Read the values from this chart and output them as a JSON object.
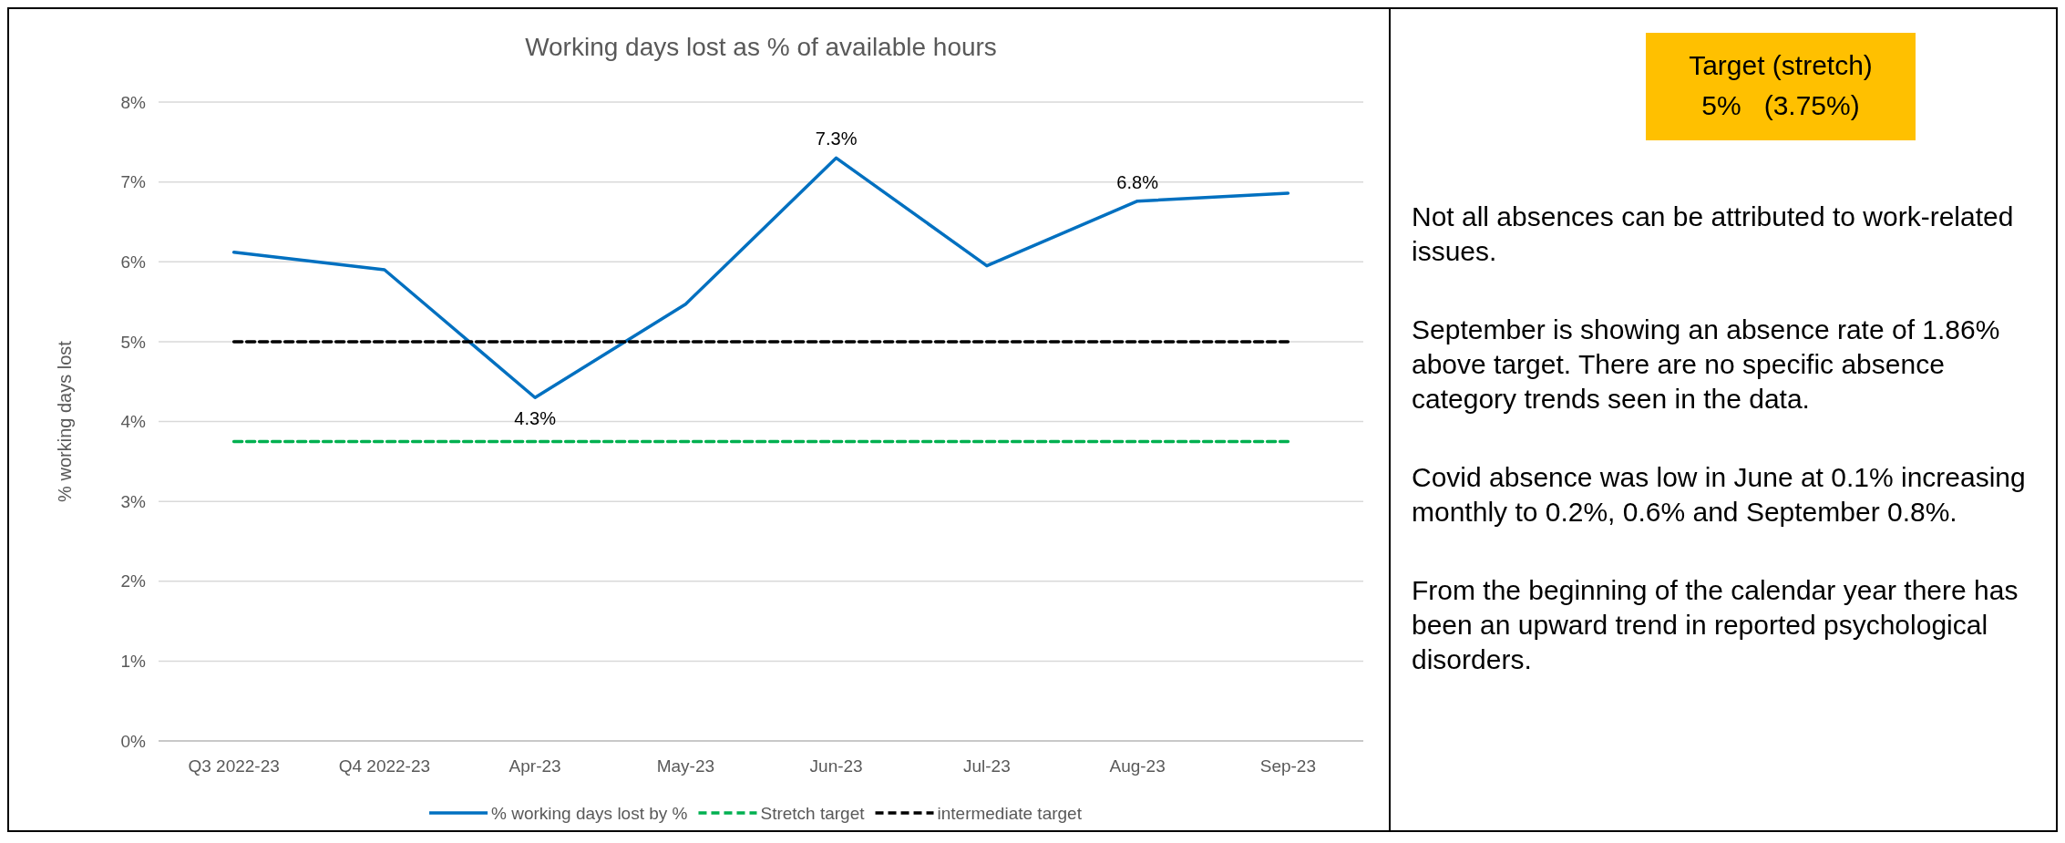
{
  "chart_data": [
    {
      "type": "line",
      "title": "Working days lost as % of available hours",
      "ylabel": "% working days lost",
      "categories": [
        "Q3 2022-23",
        "Q4 2022-23",
        "Apr-23",
        "May-23",
        "Jun-23",
        "Jul-23",
        "Aug-23",
        "Sep-23"
      ],
      "ylim": [
        0,
        8
      ],
      "yticks": [
        {
          "value": 0,
          "label": "0%"
        },
        {
          "value": 1,
          "label": "1%"
        },
        {
          "value": 2,
          "label": "2%"
        },
        {
          "value": 3,
          "label": "3%"
        },
        {
          "value": 4,
          "label": "4%"
        },
        {
          "value": 5,
          "label": "5%"
        },
        {
          "value": 6,
          "label": "6%"
        },
        {
          "value": 7,
          "label": "7%"
        },
        {
          "value": 8,
          "label": "8%"
        }
      ],
      "grid": "y",
      "legend": "bottom",
      "marker": "none",
      "series": [
        {
          "name": "% working days lost by %",
          "color": "#0070c0",
          "line_style": "solid",
          "values": [
            6.12,
            5.9,
            4.3,
            5.47,
            7.3,
            5.95,
            6.76,
            6.86
          ],
          "value_labels": [
            null,
            null,
            "4.3%",
            null,
            "7.3%",
            null,
            "6.8%",
            null
          ]
        },
        {
          "name": "Stretch target",
          "color": "#00b050",
          "line_style": "dashed",
          "values": [
            3.75,
            3.75,
            3.75,
            3.75,
            3.75,
            3.75,
            3.75,
            3.75
          ]
        },
        {
          "name": "intermediate target",
          "color": "#000000",
          "line_style": "dashed",
          "values": [
            5,
            5,
            5,
            5,
            5,
            5,
            5,
            5
          ]
        }
      ]
    },
    {
      "type": "other",
      "title": "Target (stretch)",
      "subtitle": "5%   (3.75%)",
      "color": "#ffc000",
      "annotations": [
        "Not all absences can be attributed to work-related issues.",
        "September is showing an absence rate of 1.86% above target. There are no specific absence category trends seen in the data.",
        "Covid absence was low in June at 0.1% increasing monthly to 0.2%, 0.6% and September 0.8%.",
        "From the beginning of the calendar year there has been an upward trend in reported psychological disorders."
      ]
    }
  ]
}
